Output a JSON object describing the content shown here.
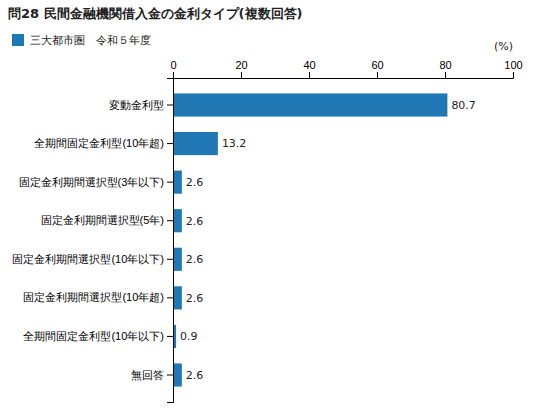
{
  "chart_data": {
    "type": "bar",
    "orientation": "horizontal",
    "title": "問28 民間金融機関借入金の金利タイプ(複数回答)",
    "xlabel": "(%)",
    "categories": [
      "変動金利型",
      "全期間固定金利型(10年超)",
      "固定金利期間選択型(3年以下)",
      "固定金利期間選択型(5年)",
      "固定金利期間選択型(10年以下)",
      "固定金利期間選択型(10年超)",
      "全期間固定金利型(10年以下)",
      "無回答"
    ],
    "series": [
      {
        "name": "三大都市圏　令和５年度",
        "values": [
          80.7,
          13.2,
          2.6,
          2.6,
          2.6,
          2.6,
          0.9,
          2.6
        ]
      }
    ],
    "xlim": [
      0,
      100
    ],
    "xticks": [
      0,
      20,
      40,
      60,
      80,
      100
    ],
    "grid": false,
    "legend": "top-left",
    "data_labels": true
  }
}
